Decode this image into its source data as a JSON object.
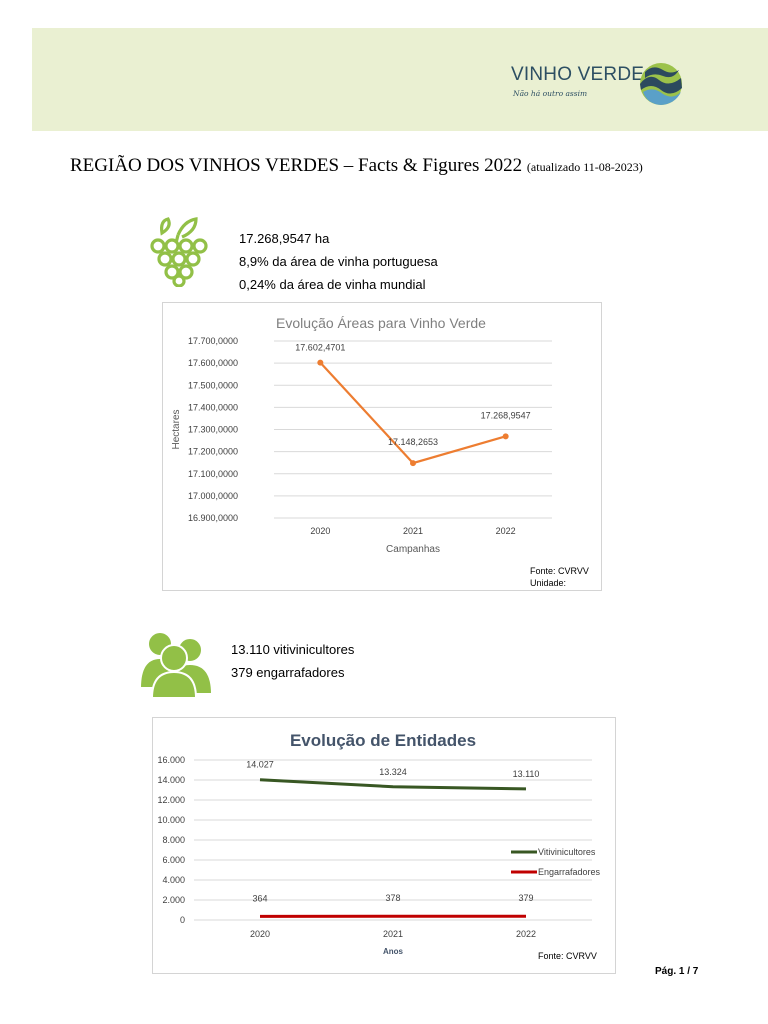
{
  "logo": {
    "word": "VINHO VERDE",
    "tagline": "Não há outro assim"
  },
  "document": {
    "title": "REGIÃO DOS VINHOS VERDES – Facts & Figures 2022",
    "updated": "(atualizado 11-08-2023)",
    "page": "Pág. 1 / 7"
  },
  "area_stats": {
    "hectares": "17.268,9547 ha",
    "pct_portugal": "8,9% da área de vinha portuguesa",
    "pct_world": "0,24% da área de vinha mundial",
    "icon": "grapes-icon"
  },
  "entity_stats": {
    "growers": "13.110 vitivinicultores",
    "bottlers": "379 engarrafadores",
    "icon": "people-icon"
  },
  "colors": {
    "header_band": "#eaf0d2",
    "accent_green": "#92c047",
    "area_line": "#ed7d31",
    "growers_line": "#385723",
    "bottlers_line": "#c00000",
    "title_blue": "#44546a"
  },
  "chart_data": [
    {
      "type": "line",
      "title": "Evolução Áreas para Vinho Verde",
      "xlabel": "Campanhas",
      "ylabel": "Hectares",
      "categories": [
        "2020",
        "2021",
        "2022"
      ],
      "series": [
        {
          "values": [
            17602.4701,
            17148.2653,
            17268.9547
          ]
        }
      ],
      "data_labels": [
        "17.602,4701",
        "17.148,2653",
        "17.268,9547"
      ],
      "ylim": [
        16900,
        17700
      ],
      "yticks": [
        17700,
        17600,
        17500,
        17400,
        17300,
        17200,
        17100,
        17000,
        16900
      ],
      "ytick_labels": [
        "17.700,0000",
        "17.600,0000",
        "17.500,0000",
        "17.400,0000",
        "17.300,0000",
        "17.200,0000",
        "17.100,0000",
        "17.000,0000",
        "16.900,0000"
      ],
      "grid": true,
      "legend": "none",
      "source": "Fonte: CVRVV",
      "unit_label": "Unidade:"
    },
    {
      "type": "line",
      "title": "Evolução de Entidades",
      "xlabel": "Anos",
      "ylabel": "",
      "categories": [
        "2020",
        "2021",
        "2022"
      ],
      "series": [
        {
          "name": "Vitivinicultores",
          "values": [
            14027,
            13324,
            13110
          ],
          "labels": [
            "14.027",
            "13.324",
            "13.110"
          ]
        },
        {
          "name": "Engarrafadores",
          "values": [
            364,
            378,
            379
          ],
          "labels": [
            "364",
            "378",
            "379"
          ]
        }
      ],
      "ylim": [
        0,
        16000
      ],
      "yticks": [
        16000,
        14000,
        12000,
        10000,
        8000,
        6000,
        4000,
        2000,
        0
      ],
      "ytick_labels": [
        "16.000",
        "14.000",
        "12.000",
        "10.000",
        "8.000",
        "6.000",
        "4.000",
        "2.000",
        "0"
      ],
      "grid": true,
      "legend": "right",
      "source": "Fonte: CVRVV"
    }
  ]
}
